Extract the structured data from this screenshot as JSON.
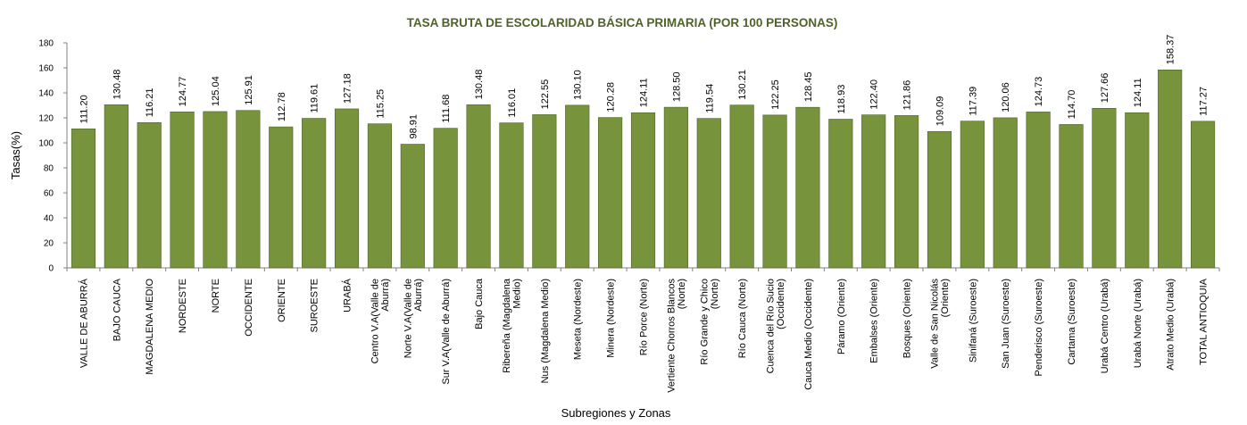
{
  "chart_data": {
    "type": "bar",
    "title": "TASA BRUTA DE ESCOLARIDAD BÁSICA PRIMARIA (POR 100 PERSONAS)",
    "xlabel": "Subregiones y Zonas",
    "ylabel": "Tasas(%)",
    "ylim": [
      0,
      180
    ],
    "yticks": [
      0,
      20,
      40,
      60,
      80,
      100,
      120,
      140,
      160,
      180
    ],
    "grid": false,
    "legend": "none",
    "bar_color": "#77933c",
    "bar_border": "#4f6228",
    "title_color": "#4f6228",
    "categories": [
      [
        "VALLE DE ABURRÁ"
      ],
      [
        "BAJO CAUCA"
      ],
      [
        "MAGDALENA MEDIO"
      ],
      [
        "NORDESTE"
      ],
      [
        "NORTE"
      ],
      [
        "OCCIDENTE"
      ],
      [
        "ORIENTE"
      ],
      [
        "SUROESTE"
      ],
      [
        "URABÁ"
      ],
      [
        "Centro V.A(Valle de",
        "Aburrá)"
      ],
      [
        "Norte V.A(Valle de",
        "Aburrá)"
      ],
      [
        "Sur V.A(Valle de Aburrá)"
      ],
      [
        "Bajo Cauca"
      ],
      [
        "Ribereña  (Magdalena",
        "Medio)"
      ],
      [
        "Nus  (Magdalena Medio)"
      ],
      [
        "Meseta  (Nordeste)"
      ],
      [
        "Minera  (Nordeste)"
      ],
      [
        "Río Porce   (Norte)"
      ],
      [
        "Vertiente Chorros Blancos",
        "(Norte)"
      ],
      [
        "Río Grande y Chico",
        "(Norte)"
      ],
      [
        "Río Cauca  (Norte)"
      ],
      [
        "Cuenca del Río Sucio",
        "(Occidente)"
      ],
      [
        "Cauca Medio  (Occidente)"
      ],
      [
        "Páramo   (Oriente)"
      ],
      [
        "Embalses  (Oriente)"
      ],
      [
        "Bosques  (Oriente)"
      ],
      [
        "Valle de San Nicolás",
        "(Oriente)"
      ],
      [
        "Sinifaná  (Suroeste)"
      ],
      [
        "San Juan  (Suroeste)"
      ],
      [
        "Penderisco  (Suroeste)"
      ],
      [
        "Cartama  (Suroeste)"
      ],
      [
        "Urabá Centro  (Urabá)"
      ],
      [
        "Urabá Norte  (Urabá)"
      ],
      [
        "Atrato Medio  (Urabá)"
      ],
      [
        "TOTAL ANTIOQUIA"
      ]
    ],
    "values": [
      111.2,
      130.48,
      116.21,
      124.77,
      125.04,
      125.91,
      112.78,
      119.61,
      127.18,
      115.25,
      98.91,
      111.68,
      130.48,
      116.01,
      122.55,
      130.1,
      120.28,
      124.11,
      128.5,
      119.54,
      130.21,
      122.25,
      128.45,
      118.93,
      122.4,
      121.86,
      109.09,
      117.39,
      120.06,
      124.73,
      114.7,
      127.66,
      124.11,
      158.37,
      117.27
    ],
    "value_labels": [
      "111.20",
      "130.48",
      "116.21",
      "124.77",
      "125.04",
      "125.91",
      "112.78",
      "119.61",
      "127.18",
      "115.25",
      "98.91",
      "111.68",
      "130.48",
      "116.01",
      "122.55",
      "130.10",
      "120.28",
      "124.11",
      "128.50",
      "119.54",
      "130.21",
      "122.25",
      "128.45",
      "118.93",
      "122.40",
      "121.86",
      "109.09",
      "117.39",
      "120.06",
      "124.73",
      "114.70",
      "127.66",
      "124.11",
      "158.37",
      "117.27"
    ]
  }
}
